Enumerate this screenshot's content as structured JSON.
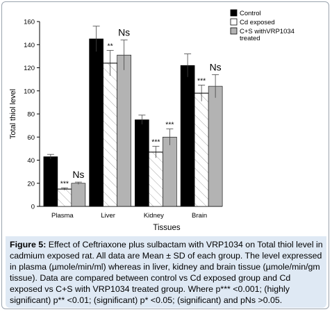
{
  "chart_data": {
    "type": "bar",
    "categories": [
      "Plasma",
      "Liver",
      "Kidney",
      "Brain"
    ],
    "series": [
      {
        "name": "Control",
        "values": [
          43,
          145,
          75,
          122
        ],
        "sd": [
          2,
          11,
          4,
          10
        ],
        "color": "#000000",
        "pattern": "solid"
      },
      {
        "name": "Cd exposed",
        "values": [
          15,
          124,
          47,
          98
        ],
        "sd": [
          1,
          11,
          5,
          7
        ],
        "color": "#ffffff",
        "pattern": "hatch"
      },
      {
        "name": "C+S withVRP1034 treated",
        "values": [
          20,
          131,
          60,
          104
        ],
        "sd": [
          1,
          13,
          7,
          10
        ],
        "color": "#b3b3b3",
        "pattern": "solid"
      }
    ],
    "annotations": [
      {
        "category": 0,
        "series": 1,
        "text": "***"
      },
      {
        "category": 0,
        "series": 2,
        "text": "Ns"
      },
      {
        "category": 1,
        "series": 1,
        "text": "**"
      },
      {
        "category": 1,
        "series": 2,
        "text": "Ns"
      },
      {
        "category": 2,
        "series": 1,
        "text": "***"
      },
      {
        "category": 2,
        "series": 2,
        "text": "***"
      },
      {
        "category": 3,
        "series": 1,
        "text": "***"
      },
      {
        "category": 3,
        "series": 2,
        "text": "Ns"
      }
    ],
    "ylabel": "Total thiol level",
    "xlabel": "Tissues",
    "ylim": [
      0,
      160
    ],
    "yticks": [
      "0",
      "20",
      "40",
      "60",
      "80",
      "100",
      "120",
      "140",
      "160"
    ],
    "legend_position": "top-right",
    "grid": false
  },
  "caption": {
    "label": "Figure 5:",
    "text": " Effect of Ceftriaxone plus sulbactam with VRP1034 on Total thiol level in cadmium exposed rat. All data are Mean ± SD of each group. The level expressed in plasma (µmole/min/ml) whereas in liver, kidney and brain tissue (µmole/min/gm tissue). Data are compared between control vs Cd exposed group and Cd exposed vs C+S with VRP1034 treated group. Where p*** <0.001; (highly significant) p** <0.01; (significant) p* <0.05; (significant) and pNs >0.05."
  }
}
